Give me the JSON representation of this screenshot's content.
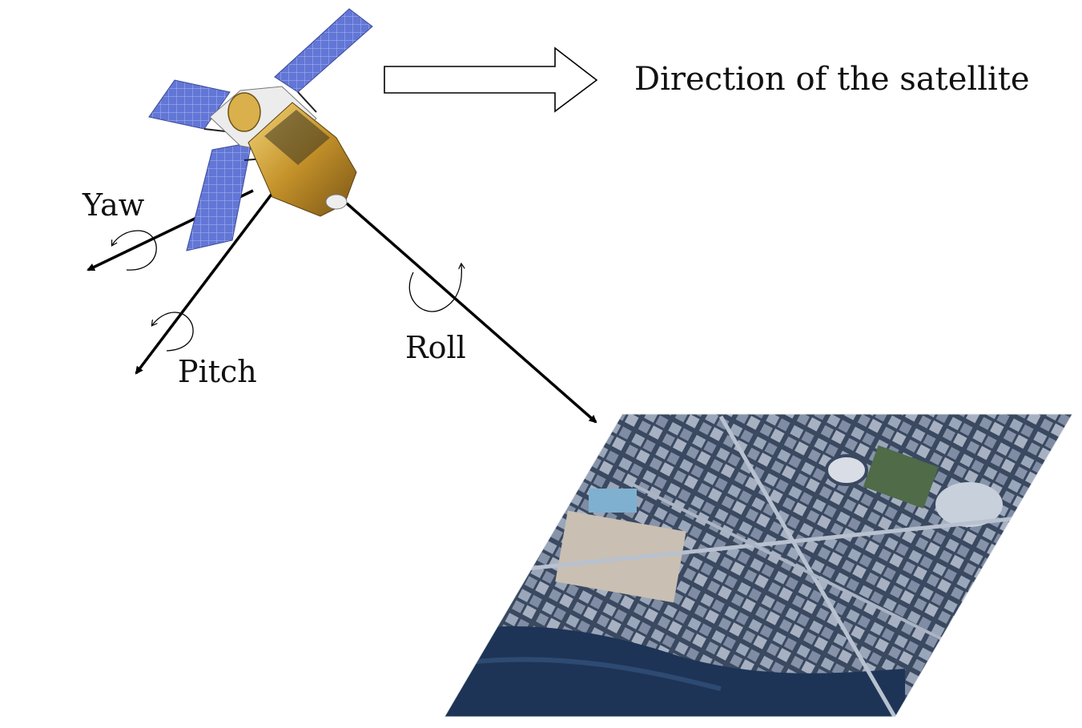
{
  "direction_label": "Direction of the satellite",
  "axes": {
    "yaw": "Yaw",
    "pitch": "Pitch",
    "roll": "Roll"
  },
  "icons": {
    "satellite": "satellite-icon",
    "direction_arrow": "hollow-right-arrow-icon",
    "rotation": "curved-rotation-arrow-icon",
    "ground_image": "aerial-city-image"
  },
  "colors": {
    "arrow": "#000000",
    "solar_panel": "#5b6fd1",
    "satellite_body": "#c99a2e",
    "ground_water": "#1d3456",
    "ground_buildings": "#8a97ad"
  }
}
